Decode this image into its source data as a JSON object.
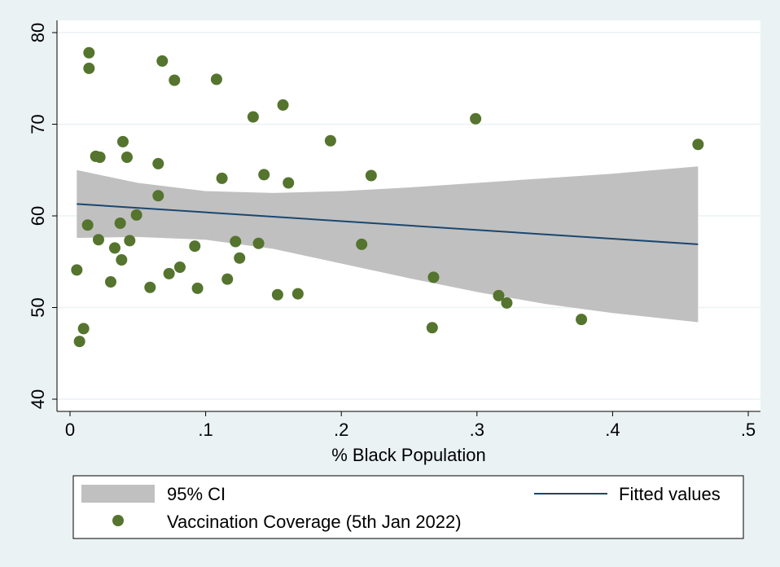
{
  "chart_data": {
    "type": "scatter",
    "title": "",
    "xlabel": "% Black Population",
    "ylabel": "",
    "xlim": [
      0,
      0.5
    ],
    "ylim": [
      40,
      80
    ],
    "x_ticks": [
      0,
      0.1,
      0.2,
      0.3,
      0.4,
      0.5
    ],
    "x_tick_labels": [
      "0",
      ".1",
      ".2",
      ".3",
      ".4",
      ".5"
    ],
    "y_ticks": [
      40,
      50,
      60,
      70,
      80
    ],
    "y_tick_labels": [
      "40",
      "50",
      "60",
      "70",
      "80"
    ],
    "grid": "horizontal",
    "legend_position": "bottom",
    "series": [
      {
        "name": "Vaccination Coverage (5th Jan 2022)",
        "kind": "scatter",
        "color": "#55742e",
        "points": [
          [
            0.014,
            77.8
          ],
          [
            0.014,
            76.1
          ],
          [
            0.068,
            76.9
          ],
          [
            0.077,
            74.8
          ],
          [
            0.108,
            74.9
          ],
          [
            0.157,
            72.1
          ],
          [
            0.135,
            70.8
          ],
          [
            0.299,
            70.6
          ],
          [
            0.192,
            68.2
          ],
          [
            0.039,
            68.1
          ],
          [
            0.463,
            67.8
          ],
          [
            0.019,
            66.5
          ],
          [
            0.022,
            66.4
          ],
          [
            0.042,
            66.4
          ],
          [
            0.065,
            65.7
          ],
          [
            0.143,
            64.5
          ],
          [
            0.222,
            64.4
          ],
          [
            0.112,
            64.1
          ],
          [
            0.161,
            63.6
          ],
          [
            0.065,
            62.2
          ],
          [
            0.049,
            60.1
          ],
          [
            0.037,
            59.2
          ],
          [
            0.013,
            59.0
          ],
          [
            0.021,
            57.4
          ],
          [
            0.044,
            57.3
          ],
          [
            0.122,
            57.2
          ],
          [
            0.139,
            57.0
          ],
          [
            0.215,
            56.9
          ],
          [
            0.092,
            56.7
          ],
          [
            0.033,
            56.5
          ],
          [
            0.038,
            55.2
          ],
          [
            0.125,
            55.4
          ],
          [
            0.081,
            54.4
          ],
          [
            0.005,
            54.1
          ],
          [
            0.073,
            53.7
          ],
          [
            0.268,
            53.3
          ],
          [
            0.116,
            53.1
          ],
          [
            0.03,
            52.8
          ],
          [
            0.059,
            52.2
          ],
          [
            0.094,
            52.1
          ],
          [
            0.168,
            51.5
          ],
          [
            0.153,
            51.4
          ],
          [
            0.316,
            51.3
          ],
          [
            0.322,
            50.5
          ],
          [
            0.377,
            48.7
          ],
          [
            0.01,
            47.7
          ],
          [
            0.267,
            47.8
          ],
          [
            0.007,
            46.3
          ]
        ]
      },
      {
        "name": "Fitted values",
        "kind": "line",
        "color": "#1a476f",
        "points": [
          [
            0.005,
            61.3
          ],
          [
            0.463,
            56.9
          ]
        ]
      },
      {
        "name": "95% CI",
        "kind": "band",
        "color": "#c0c0c0",
        "x": [
          0.005,
          0.05,
          0.1,
          0.15,
          0.2,
          0.25,
          0.3,
          0.35,
          0.4,
          0.463
        ],
        "upper": [
          65.0,
          63.6,
          62.7,
          62.5,
          62.7,
          63.1,
          63.6,
          64.1,
          64.6,
          65.4
        ],
        "lower": [
          57.6,
          57.7,
          57.4,
          56.4,
          54.8,
          53.2,
          51.7,
          50.4,
          49.4,
          48.4
        ]
      }
    ]
  },
  "legend": {
    "ci_label": "95% CI",
    "fit_label": "Fitted values",
    "scatter_label": "Vaccination Coverage (5th Jan 2022)"
  },
  "colors": {
    "page_background": "#eaf2f3",
    "plot_background": "#ffffff",
    "gridline": "#eaf2f3",
    "axis": "#000000"
  }
}
